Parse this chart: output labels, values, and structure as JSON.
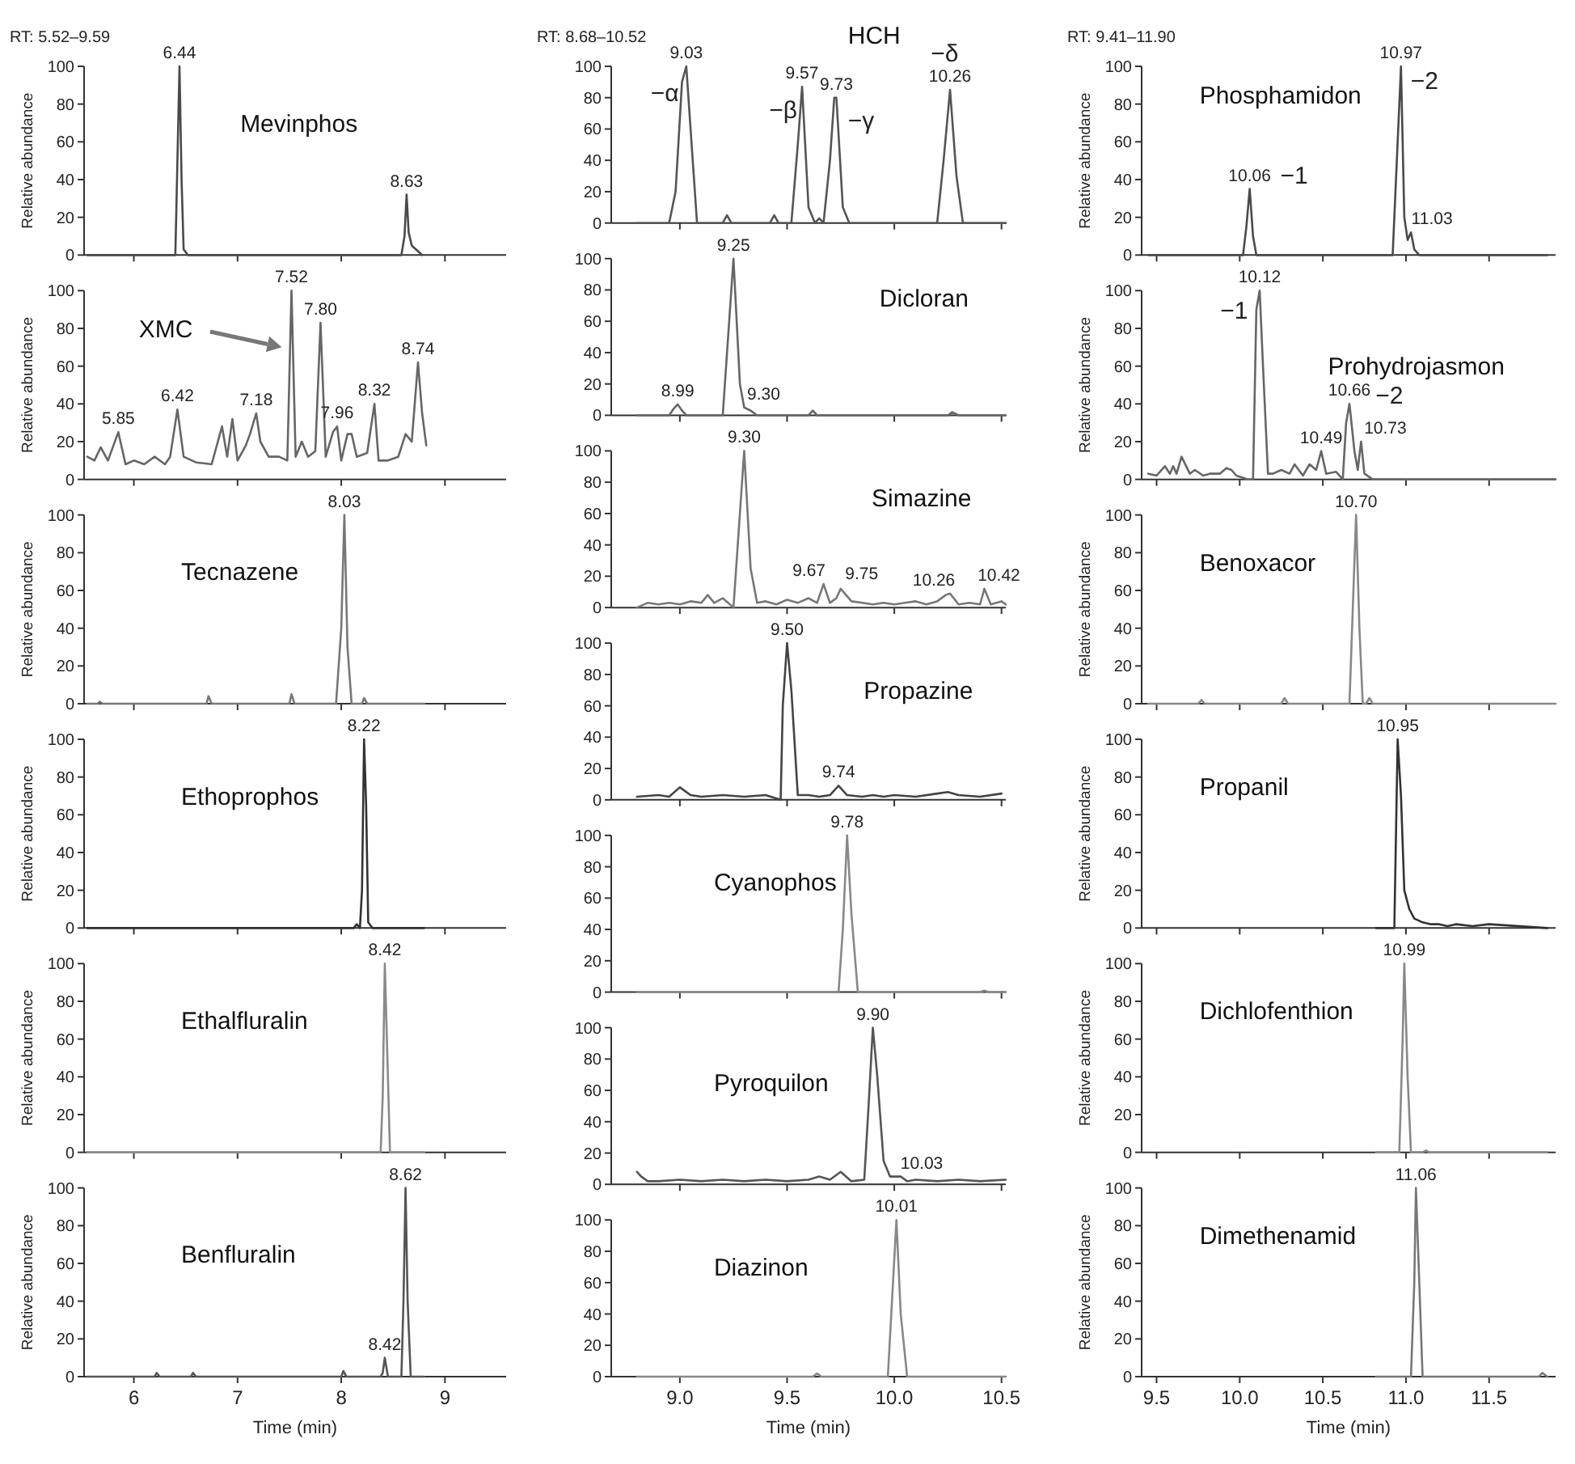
{
  "chart_data": [
    {
      "type": "line",
      "title": "Mevinphos",
      "ylabel": "Relative abundance",
      "annotations": [
        "RT: 5.52–9.59",
        {
          "text": "6.44",
          "x": 6.44,
          "y": 100
        },
        {
          "text": "8.63",
          "x": 8.63,
          "y": 32
        }
      ],
      "tick_labels": "y",
      "xlim": [
        5.52,
        9.59
      ],
      "xticks": [
        6,
        7,
        8,
        9
      ],
      "ylim": [
        0,
        100
      ],
      "yticks": [
        0,
        20,
        40,
        60,
        80,
        100
      ],
      "series": [
        {
          "color": "#4a4a4a",
          "x": [
            5.55,
            6.4,
            6.42,
            6.44,
            6.46,
            6.48,
            6.52,
            8.58,
            8.61,
            8.63,
            8.65,
            8.68,
            8.72,
            8.78
          ],
          "values": [
            0,
            0,
            50,
            100,
            40,
            3,
            0,
            0,
            10,
            32,
            12,
            5,
            3,
            0
          ]
        }
      ]
    },
    {
      "type": "line",
      "title": "XMC",
      "ylabel": "Relative abundance",
      "annotations": [
        {
          "text": "5.85",
          "x": 5.85,
          "y": 25
        },
        {
          "text": "6.42",
          "x": 6.42,
          "y": 37
        },
        {
          "text": "7.18",
          "x": 7.18,
          "y": 35
        },
        {
          "text": "7.52",
          "x": 7.52,
          "y": 100
        },
        {
          "text": "7.80",
          "x": 7.8,
          "y": 83
        },
        {
          "text": "7.96",
          "x": 7.96,
          "y": 28
        },
        {
          "text": "8.32",
          "x": 8.32,
          "y": 40
        },
        {
          "text": "8.74",
          "x": 8.74,
          "y": 62
        }
      ],
      "tick_labels": "y",
      "xlim": [
        5.52,
        9.59
      ],
      "xticks": [
        6,
        7,
        8,
        9
      ],
      "ylim": [
        0,
        100
      ],
      "yticks": [
        0,
        20,
        40,
        60,
        80,
        100
      ],
      "series": [
        {
          "color": "#666666",
          "x": [
            5.55,
            5.62,
            5.68,
            5.75,
            5.85,
            5.92,
            6.0,
            6.1,
            6.2,
            6.3,
            6.35,
            6.42,
            6.48,
            6.6,
            6.75,
            6.85,
            6.9,
            6.95,
            7.0,
            7.08,
            7.12,
            7.18,
            7.22,
            7.3,
            7.4,
            7.48,
            7.52,
            7.56,
            7.62,
            7.68,
            7.75,
            7.8,
            7.85,
            7.92,
            7.96,
            8.0,
            8.06,
            8.1,
            8.15,
            8.25,
            8.32,
            8.36,
            8.45,
            8.55,
            8.62,
            8.68,
            8.74,
            8.78,
            8.82
          ],
          "values": [
            12,
            10,
            17,
            10,
            25,
            8,
            10,
            8,
            12,
            8,
            12,
            37,
            12,
            9,
            8,
            28,
            12,
            32,
            10,
            18,
            24,
            35,
            20,
            12,
            12,
            10,
            100,
            12,
            20,
            12,
            15,
            83,
            12,
            25,
            28,
            10,
            24,
            24,
            12,
            14,
            40,
            10,
            10,
            12,
            24,
            20,
            62,
            35,
            18
          ]
        }
      ]
    },
    {
      "type": "line",
      "title": "Tecnazene",
      "ylabel": "Relative abundance",
      "annotations": [
        {
          "text": "8.03",
          "x": 8.03,
          "y": 100
        }
      ],
      "tick_labels": "y",
      "xlim": [
        5.52,
        9.59
      ],
      "xticks": [
        6,
        7,
        8,
        9
      ],
      "ylim": [
        0,
        100
      ],
      "yticks": [
        0,
        20,
        40,
        60,
        80,
        100
      ],
      "series": [
        {
          "color": "#777777",
          "x": [
            5.55,
            5.65,
            5.67,
            5.7,
            6.0,
            6.7,
            6.72,
            6.75,
            7.5,
            7.52,
            7.55,
            7.95,
            8.0,
            8.03,
            8.06,
            8.1,
            8.2,
            8.22,
            8.25,
            8.8
          ],
          "values": [
            0,
            0,
            1,
            0,
            0,
            0,
            4,
            0,
            0,
            5,
            0,
            0,
            40,
            100,
            30,
            0,
            0,
            3,
            0,
            0
          ]
        }
      ]
    },
    {
      "type": "line",
      "title": "Ethoprophos",
      "ylabel": "Relative abundance",
      "annotations": [
        {
          "text": "8.22",
          "x": 8.22,
          "y": 100
        }
      ],
      "tick_labels": "y",
      "xlim": [
        5.52,
        9.59
      ],
      "xticks": [
        6,
        7,
        8,
        9
      ],
      "ylim": [
        0,
        100
      ],
      "yticks": [
        0,
        20,
        40,
        60,
        80,
        100
      ],
      "series": [
        {
          "color": "#333333",
          "x": [
            5.55,
            8.12,
            8.15,
            8.18,
            8.2,
            8.22,
            8.24,
            8.26,
            8.3,
            8.8
          ],
          "values": [
            0,
            0,
            2,
            0,
            20,
            100,
            65,
            3,
            0,
            0
          ]
        }
      ]
    },
    {
      "type": "line",
      "title": "Ethalfluralin",
      "ylabel": "Relative abundance",
      "annotations": [
        {
          "text": "8.42",
          "x": 8.42,
          "y": 100
        }
      ],
      "tick_labels": "y",
      "xlim": [
        5.52,
        9.59
      ],
      "xticks": [
        6,
        7,
        8,
        9
      ],
      "ylim": [
        0,
        100
      ],
      "yticks": [
        0,
        20,
        40,
        60,
        80,
        100
      ],
      "series": [
        {
          "color": "#8a8a8a",
          "x": [
            5.55,
            8.38,
            8.4,
            8.42,
            8.44,
            8.47,
            8.8
          ],
          "values": [
            0,
            0,
            30,
            100,
            60,
            0,
            0
          ]
        }
      ]
    },
    {
      "type": "line",
      "title": "Benfluralin",
      "ylabel": "Relative abundance",
      "xlabel": "Time (min)",
      "annotations": [
        {
          "text": "8.42",
          "x": 8.42,
          "y": 10
        },
        {
          "text": "8.62",
          "x": 8.62,
          "y": 100
        }
      ],
      "xlim": [
        5.52,
        9.59
      ],
      "xticks": [
        6,
        7,
        8,
        9
      ],
      "ylim": [
        0,
        100
      ],
      "yticks": [
        0,
        20,
        40,
        60,
        80,
        100
      ],
      "series": [
        {
          "color": "#555555",
          "x": [
            5.55,
            6.2,
            6.22,
            6.25,
            6.55,
            6.57,
            6.6,
            8.0,
            8.02,
            8.05,
            8.38,
            8.4,
            8.42,
            8.45,
            8.58,
            8.6,
            8.62,
            8.64,
            8.67,
            8.8
          ],
          "values": [
            0,
            0,
            2,
            0,
            0,
            2,
            0,
            0,
            3,
            0,
            0,
            2,
            10,
            0,
            0,
            40,
            100,
            40,
            0,
            0
          ]
        }
      ]
    },
    {
      "type": "line",
      "title": "HCH",
      "annotations": [
        "RT: 8.68–10.52",
        "−α",
        "−β",
        "−γ",
        "−δ",
        {
          "text": "9.03",
          "x": 9.03,
          "y": 100
        },
        {
          "text": "9.57",
          "x": 9.57,
          "y": 87
        },
        {
          "text": "9.73",
          "x": 9.73,
          "y": 80
        },
        {
          "text": "10.26",
          "x": 10.26,
          "y": 85
        }
      ],
      "tick_labels": "y",
      "xlim": [
        8.68,
        10.52
      ],
      "xticks": [
        9,
        9.5,
        10,
        10.5
      ],
      "ylim": [
        0,
        100
      ],
      "yticks": [
        0,
        20,
        40,
        60,
        80,
        100
      ],
      "series": [
        {
          "color": "#555555",
          "x": [
            8.8,
            8.95,
            8.98,
            9.01,
            9.03,
            9.05,
            9.08,
            9.2,
            9.22,
            9.24,
            9.42,
            9.44,
            9.46,
            9.52,
            9.55,
            9.57,
            9.6,
            9.63,
            9.65,
            9.67,
            9.7,
            9.72,
            9.73,
            9.76,
            9.79,
            10.2,
            10.23,
            10.26,
            10.29,
            10.32,
            10.52
          ],
          "values": [
            0,
            0,
            20,
            90,
            100,
            60,
            0,
            0,
            5,
            0,
            0,
            5,
            0,
            0,
            50,
            87,
            10,
            0,
            3,
            0,
            40,
            80,
            80,
            10,
            0,
            0,
            40,
            85,
            30,
            0,
            0
          ]
        }
      ]
    },
    {
      "type": "line",
      "title": "Dicloran",
      "annotations": [
        {
          "text": "9.25",
          "x": 9.25,
          "y": 100
        },
        {
          "text": "8.99",
          "x": 8.99,
          "y": 7
        },
        {
          "text": "9.30",
          "x": 9.3,
          "y": 5
        }
      ],
      "tick_labels": "y",
      "xlim": [
        8.68,
        10.52
      ],
      "xticks": [
        9,
        9.5,
        10,
        10.5
      ],
      "ylim": [
        0,
        100
      ],
      "yticks": [
        0,
        20,
        40,
        60,
        80,
        100
      ],
      "series": [
        {
          "color": "#666666",
          "x": [
            8.8,
            8.95,
            8.97,
            8.99,
            9.01,
            9.03,
            9.2,
            9.22,
            9.25,
            9.28,
            9.3,
            9.33,
            9.36,
            9.6,
            9.62,
            9.64,
            10.25,
            10.27,
            10.3,
            10.52
          ],
          "values": [
            0,
            0,
            4,
            7,
            3,
            0,
            0,
            40,
            100,
            20,
            5,
            3,
            0,
            0,
            3,
            0,
            0,
            2,
            0,
            0
          ]
        }
      ]
    },
    {
      "type": "line",
      "title": "Simazine",
      "annotations": [
        {
          "text": "9.30",
          "x": 9.3,
          "y": 100
        },
        {
          "text": "9.67",
          "x": 9.67,
          "y": 15
        },
        {
          "text": "9.75",
          "x": 9.75,
          "y": 12
        },
        {
          "text": "10.26",
          "x": 10.26,
          "y": 9
        },
        {
          "text": "10.42",
          "x": 10.42,
          "y": 12
        }
      ],
      "tick_labels": "y",
      "xlim": [
        8.68,
        10.52
      ],
      "xticks": [
        9,
        9.5,
        10,
        10.5
      ],
      "ylim": [
        0,
        100
      ],
      "yticks": [
        0,
        20,
        40,
        60,
        80,
        100
      ],
      "series": [
        {
          "color": "#777777",
          "x": [
            8.8,
            8.85,
            8.9,
            8.95,
            9.0,
            9.05,
            9.1,
            9.13,
            9.16,
            9.2,
            9.25,
            9.27,
            9.3,
            9.33,
            9.36,
            9.4,
            9.45,
            9.5,
            9.55,
            9.6,
            9.64,
            9.67,
            9.7,
            9.73,
            9.75,
            9.8,
            9.85,
            9.9,
            9.95,
            10.0,
            10.05,
            10.1,
            10.15,
            10.2,
            10.24,
            10.26,
            10.3,
            10.35,
            10.4,
            10.42,
            10.45,
            10.5,
            10.52
          ],
          "values": [
            0,
            3,
            2,
            3,
            2,
            4,
            3,
            8,
            3,
            6,
            0,
            40,
            100,
            25,
            3,
            4,
            2,
            5,
            3,
            6,
            3,
            15,
            3,
            6,
            12,
            4,
            3,
            2,
            3,
            2,
            3,
            4,
            2,
            4,
            8,
            9,
            2,
            3,
            2,
            12,
            2,
            4,
            2
          ]
        }
      ]
    },
    {
      "type": "line",
      "title": "Propazine",
      "annotations": [
        {
          "text": "9.50",
          "x": 9.5,
          "y": 100
        },
        {
          "text": "9.74",
          "x": 9.74,
          "y": 9
        }
      ],
      "tick_labels": "y",
      "xlim": [
        8.68,
        10.52
      ],
      "xticks": [
        9,
        9.5,
        10,
        10.5
      ],
      "ylim": [
        0,
        100
      ],
      "yticks": [
        0,
        20,
        40,
        60,
        80,
        100
      ],
      "series": [
        {
          "color": "#444444",
          "x": [
            8.8,
            8.9,
            8.95,
            9.0,
            9.05,
            9.1,
            9.2,
            9.3,
            9.4,
            9.47,
            9.48,
            9.5,
            9.52,
            9.55,
            9.6,
            9.65,
            9.7,
            9.74,
            9.78,
            9.85,
            9.9,
            9.95,
            10.0,
            10.1,
            10.2,
            10.25,
            10.3,
            10.4,
            10.5
          ],
          "values": [
            2,
            3,
            2,
            8,
            3,
            2,
            3,
            2,
            3,
            0,
            60,
            100,
            70,
            3,
            3,
            2,
            3,
            9,
            3,
            2,
            3,
            2,
            3,
            2,
            4,
            5,
            3,
            2,
            4
          ]
        }
      ]
    },
    {
      "type": "line",
      "title": "Cyanophos",
      "annotations": [
        {
          "text": "9.78",
          "x": 9.78,
          "y": 100
        }
      ],
      "tick_labels": "y",
      "xlim": [
        8.68,
        10.52
      ],
      "xticks": [
        9,
        9.5,
        10,
        10.5
      ],
      "ylim": [
        0,
        100
      ],
      "yticks": [
        0,
        20,
        40,
        60,
        80,
        100
      ],
      "series": [
        {
          "color": "#888888",
          "x": [
            8.8,
            9.74,
            9.76,
            9.78,
            9.8,
            9.83,
            10.4,
            10.42,
            10.44,
            10.52
          ],
          "values": [
            0,
            0,
            40,
            100,
            50,
            0,
            0,
            1,
            0,
            0
          ]
        }
      ]
    },
    {
      "type": "line",
      "title": "Pyroquilon",
      "annotations": [
        {
          "text": "9.90",
          "x": 9.9,
          "y": 100
        },
        {
          "text": "10.03",
          "x": 10.03,
          "y": 5
        }
      ],
      "tick_labels": "y",
      "xlim": [
        8.68,
        10.52
      ],
      "xticks": [
        9,
        9.5,
        10,
        10.5
      ],
      "ylim": [
        0,
        100
      ],
      "yticks": [
        0,
        20,
        40,
        60,
        80,
        100
      ],
      "series": [
        {
          "color": "#555555",
          "x": [
            8.8,
            8.82,
            8.85,
            8.9,
            9.0,
            9.1,
            9.2,
            9.3,
            9.4,
            9.5,
            9.6,
            9.65,
            9.7,
            9.75,
            9.8,
            9.86,
            9.88,
            9.9,
            9.92,
            9.95,
            9.98,
            10.03,
            10.06,
            10.1,
            10.2,
            10.3,
            10.4,
            10.52
          ],
          "values": [
            8,
            5,
            2,
            2,
            3,
            2,
            3,
            2,
            3,
            2,
            3,
            5,
            3,
            8,
            2,
            3,
            50,
            100,
            70,
            15,
            5,
            5,
            2,
            3,
            2,
            3,
            2,
            3
          ]
        }
      ]
    },
    {
      "type": "line",
      "title": "Diazinon",
      "xlabel": "Time (min)",
      "annotations": [
        {
          "text": "10.01",
          "x": 10.01,
          "y": 100
        }
      ],
      "xlim": [
        8.68,
        10.52
      ],
      "xticks": [
        {
          "value": 9,
          "label": "9.0"
        },
        {
          "value": 9.5,
          "label": "9.5"
        },
        {
          "value": 10,
          "label": "10.0"
        },
        {
          "value": 10.5,
          "label": "10.5"
        }
      ],
      "ylim": [
        0,
        100
      ],
      "yticks": [
        0,
        20,
        40,
        60,
        80,
        100
      ],
      "series": [
        {
          "color": "#888888",
          "x": [
            8.8,
            9.62,
            9.64,
            9.66,
            9.97,
            9.99,
            10.01,
            10.03,
            10.06,
            10.52
          ],
          "values": [
            0,
            0,
            2,
            0,
            0,
            50,
            100,
            40,
            0,
            0
          ]
        }
      ]
    },
    {
      "type": "line",
      "title": "Phosphamidon",
      "ylabel": "Relative abundance",
      "annotations": [
        "RT: 9.41–11.90",
        "−1",
        "−2",
        {
          "text": "10.97",
          "x": 10.97,
          "y": 100
        },
        {
          "text": "10.06",
          "x": 10.06,
          "y": 35
        },
        {
          "text": "11.03",
          "x": 11.03,
          "y": 12
        }
      ],
      "tick_labels": "y",
      "xlim": [
        9.41,
        11.9
      ],
      "xticks": [
        9.5,
        10,
        10.5,
        11,
        11.5
      ],
      "ylim": [
        0,
        100
      ],
      "yticks": [
        0,
        20,
        40,
        60,
        80,
        100
      ],
      "series": [
        {
          "color": "#4a4a4a",
          "x": [
            9.45,
            10.02,
            10.04,
            10.06,
            10.08,
            10.1,
            10.92,
            10.94,
            10.97,
            10.99,
            11.01,
            11.03,
            11.05,
            11.08,
            11.85
          ],
          "values": [
            0,
            0,
            15,
            35,
            10,
            0,
            0,
            40,
            100,
            20,
            8,
            12,
            3,
            0,
            0
          ]
        }
      ]
    },
    {
      "type": "line",
      "title": "Prohydrojasmon",
      "ylabel": "Relative abundance",
      "annotations": [
        "−1",
        "−2",
        {
          "text": "10.12",
          "x": 10.12,
          "y": 100
        },
        {
          "text": "10.66",
          "x": 10.66,
          "y": 40
        },
        {
          "text": "10.49",
          "x": 10.49,
          "y": 15
        },
        {
          "text": "10.73",
          "x": 10.73,
          "y": 20
        }
      ],
      "tick_labels": "y",
      "xlim": [
        9.41,
        11.9
      ],
      "xticks": [
        9.5,
        10,
        10.5,
        11,
        11.5
      ],
      "ylim": [
        0,
        100
      ],
      "yticks": [
        0,
        20,
        40,
        60,
        80,
        100
      ],
      "series": [
        {
          "color": "#666666",
          "x": [
            9.45,
            9.5,
            9.55,
            9.58,
            9.6,
            9.62,
            9.65,
            9.7,
            9.73,
            9.78,
            9.82,
            9.88,
            9.92,
            9.95,
            9.98,
            10.05,
            10.08,
            10.1,
            10.12,
            10.14,
            10.17,
            10.2,
            10.25,
            10.3,
            10.33,
            10.38,
            10.42,
            10.46,
            10.49,
            10.52,
            10.58,
            10.62,
            10.64,
            10.66,
            10.69,
            10.71,
            10.73,
            10.75,
            10.8,
            11.0,
            11.9
          ],
          "values": [
            3,
            2,
            7,
            3,
            7,
            3,
            12,
            3,
            5,
            2,
            3,
            3,
            6,
            5,
            2,
            0,
            0,
            90,
            100,
            60,
            3,
            3,
            5,
            3,
            8,
            2,
            8,
            5,
            15,
            3,
            4,
            0,
            30,
            40,
            15,
            5,
            20,
            3,
            0,
            0,
            0
          ]
        }
      ]
    },
    {
      "type": "line",
      "title": "Benoxacor",
      "ylabel": "Relative abundance",
      "annotations": [
        {
          "text": "10.70",
          "x": 10.7,
          "y": 100
        }
      ],
      "tick_labels": "y",
      "xlim": [
        9.41,
        11.9
      ],
      "xticks": [
        9.5,
        10,
        10.5,
        11,
        11.5
      ],
      "ylim": [
        0,
        100
      ],
      "yticks": [
        0,
        20,
        40,
        60,
        80,
        100
      ],
      "series": [
        {
          "color": "#888888",
          "x": [
            9.45,
            9.75,
            9.77,
            9.79,
            10.25,
            10.27,
            10.29,
            10.66,
            10.68,
            10.7,
            10.72,
            10.74,
            10.76,
            10.78,
            10.8,
            11.9
          ],
          "values": [
            0,
            0,
            2,
            0,
            0,
            3,
            0,
            0,
            50,
            100,
            40,
            0,
            0,
            3,
            0,
            0
          ]
        }
      ]
    },
    {
      "type": "line",
      "title": "Propanil",
      "ylabel": "Relative abundance",
      "annotations": [
        {
          "text": "10.95",
          "x": 10.95,
          "y": 100
        }
      ],
      "tick_labels": "y",
      "xlim": [
        9.41,
        11.9
      ],
      "xticks": [
        9.5,
        10,
        10.5,
        11,
        11.5
      ],
      "ylim": [
        0,
        100
      ],
      "yticks": [
        0,
        20,
        40,
        60,
        80,
        100
      ],
      "series": [
        {
          "color": "#333333",
          "x": [
            10.82,
            10.93,
            10.95,
            10.97,
            10.99,
            11.02,
            11.05,
            11.1,
            11.15,
            11.2,
            11.25,
            11.3,
            11.4,
            11.5,
            11.85
          ],
          "values": [
            0,
            0,
            100,
            70,
            20,
            10,
            5,
            3,
            2,
            2,
            1,
            2,
            1,
            2,
            0
          ]
        }
      ]
    },
    {
      "type": "line",
      "title": "Dichlofenthion",
      "ylabel": "Relative abundance",
      "annotations": [
        {
          "text": "10.99",
          "x": 10.99,
          "y": 100
        }
      ],
      "tick_labels": "y",
      "xlim": [
        9.41,
        11.9
      ],
      "xticks": [
        9.5,
        10,
        10.5,
        11,
        11.5
      ],
      "ylim": [
        0,
        100
      ],
      "yticks": [
        0,
        20,
        40,
        60,
        80,
        100
      ],
      "series": [
        {
          "color": "#888888",
          "x": [
            10.82,
            10.96,
            10.98,
            10.99,
            11.01,
            11.03,
            11.1,
            11.12,
            11.14,
            11.85
          ],
          "values": [
            0,
            0,
            60,
            100,
            40,
            0,
            0,
            1,
            0,
            0
          ]
        }
      ]
    },
    {
      "type": "line",
      "title": "Dimethenamid",
      "ylabel": "Relative abundance",
      "xlabel": "Time (min)",
      "annotations": [
        {
          "text": "11.06",
          "x": 11.06,
          "y": 100
        }
      ],
      "xlim": [
        9.41,
        11.9
      ],
      "xticks": [
        {
          "value": 9.5,
          "label": "9.5"
        },
        {
          "value": 10,
          "label": "10.0"
        },
        {
          "value": 10.5,
          "label": "10.5"
        },
        {
          "value": 11,
          "label": "11.0"
        },
        {
          "value": 11.5,
          "label": "11.5"
        }
      ],
      "ylim": [
        0,
        100
      ],
      "yticks": [
        0,
        20,
        40,
        60,
        80,
        100
      ],
      "series": [
        {
          "color": "#777777",
          "x": [
            10.82,
            11.03,
            11.05,
            11.06,
            11.08,
            11.1,
            11.8,
            11.82,
            11.85
          ],
          "values": [
            0,
            0,
            50,
            100,
            50,
            0,
            0,
            2,
            0
          ]
        }
      ]
    }
  ]
}
